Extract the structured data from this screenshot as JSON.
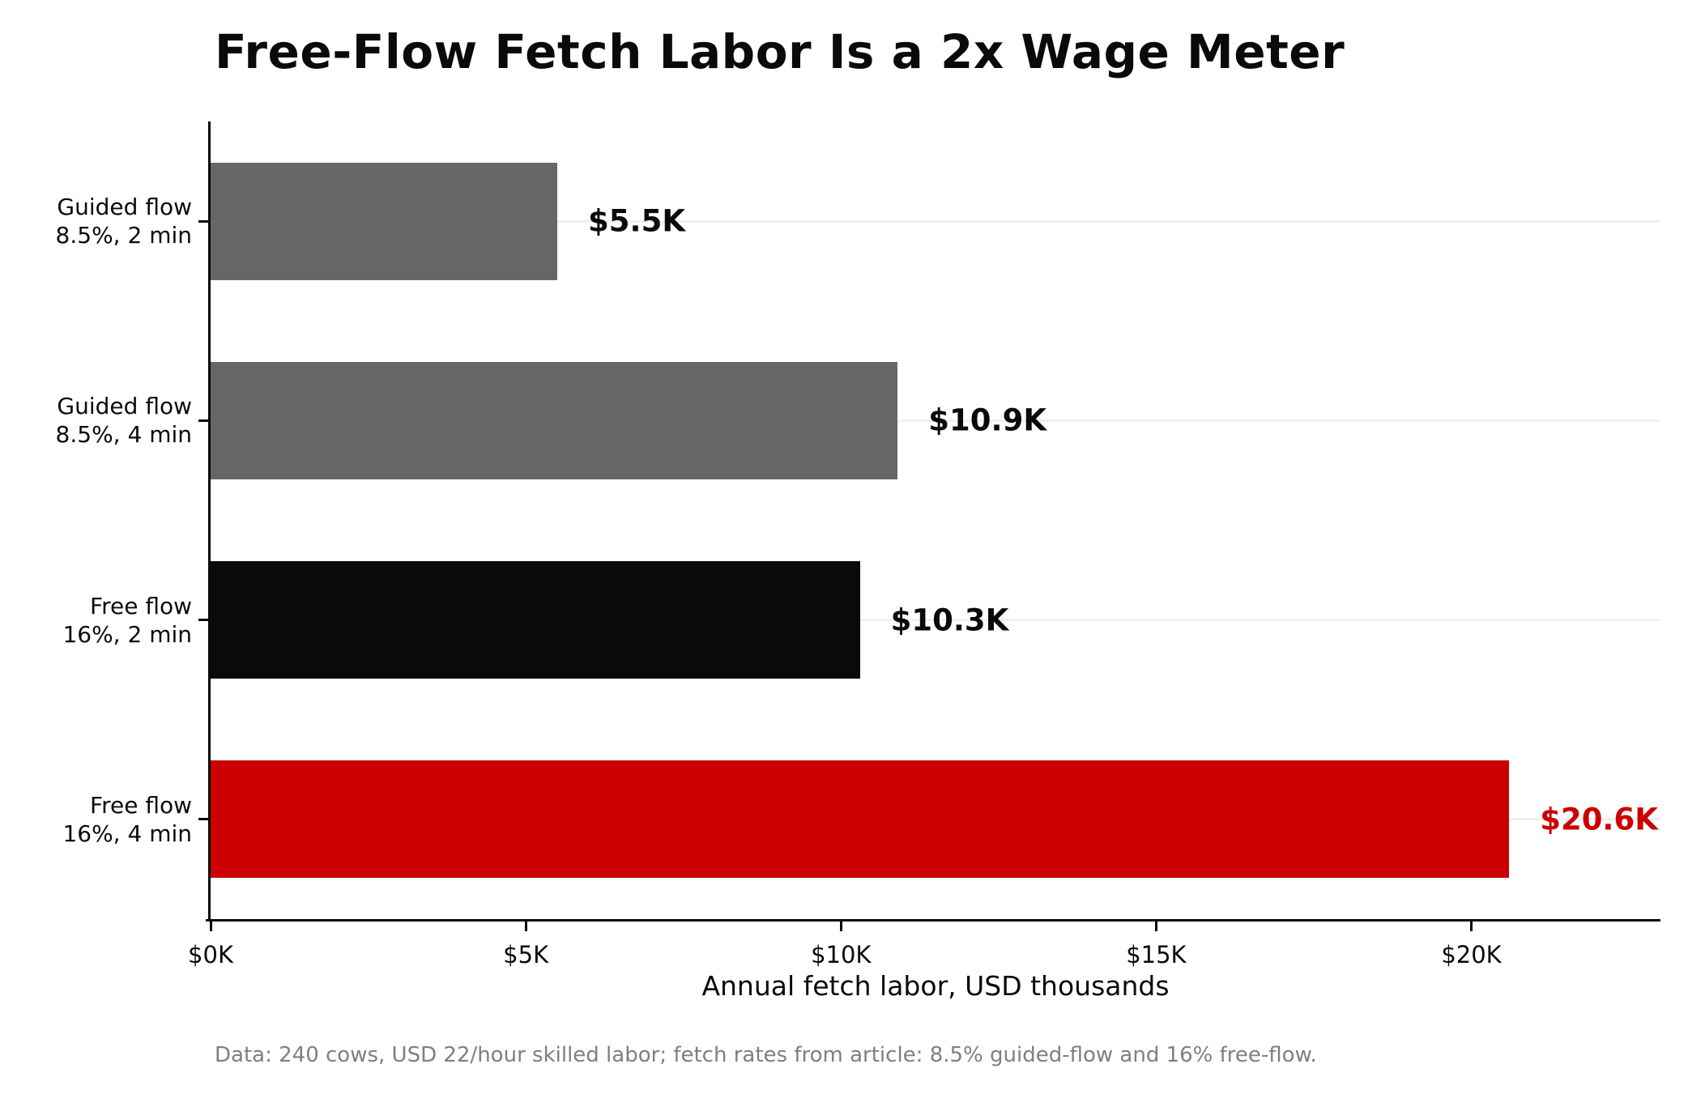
{
  "chart_data": {
    "type": "bar",
    "orientation": "horizontal",
    "title": "Free-Flow Fetch Labor Is a 2x Wage Meter",
    "xlabel": "Annual fetch labor, USD thousands",
    "footnote": "Data: 240 cows, USD 22/hour skilled labor; fetch rates from article: 8.5% guided-flow and 16% free-flow.",
    "categories": [
      "Guided flow\n8.5%, 2 min",
      "Guided flow\n8.5%, 4 min",
      "Free flow\n16%, 2 min",
      "Free flow\n16%, 4 min"
    ],
    "values": [
      5.5,
      10.9,
      10.3,
      20.6
    ],
    "value_labels": [
      "$5.5K",
      "$10.9K",
      "$10.3K",
      "$20.6K"
    ],
    "bar_colors": [
      "#666666",
      "#666666",
      "#0a0a0a",
      "#cc0000"
    ],
    "value_label_colors": [
      "#0a0a0a",
      "#0a0a0a",
      "#0a0a0a",
      "#cc0000"
    ],
    "x_ticks": [
      {
        "value": 0,
        "label": "$0K"
      },
      {
        "value": 5,
        "label": "$5K"
      },
      {
        "value": 10,
        "label": "$10K"
      },
      {
        "value": 15,
        "label": "$15K"
      },
      {
        "value": 20,
        "label": "$20K"
      }
    ],
    "xlim": [
      0,
      23
    ],
    "grid": "horizontal-light",
    "legend": "none",
    "units": "USD thousands"
  },
  "colors": {
    "accent_red": "#cc0000",
    "bar_gray": "#666666",
    "bar_black": "#0a0a0a",
    "gridline": "#f0f0f0",
    "footnote_gray": "#7f7f7f",
    "background": "#ffffff"
  }
}
